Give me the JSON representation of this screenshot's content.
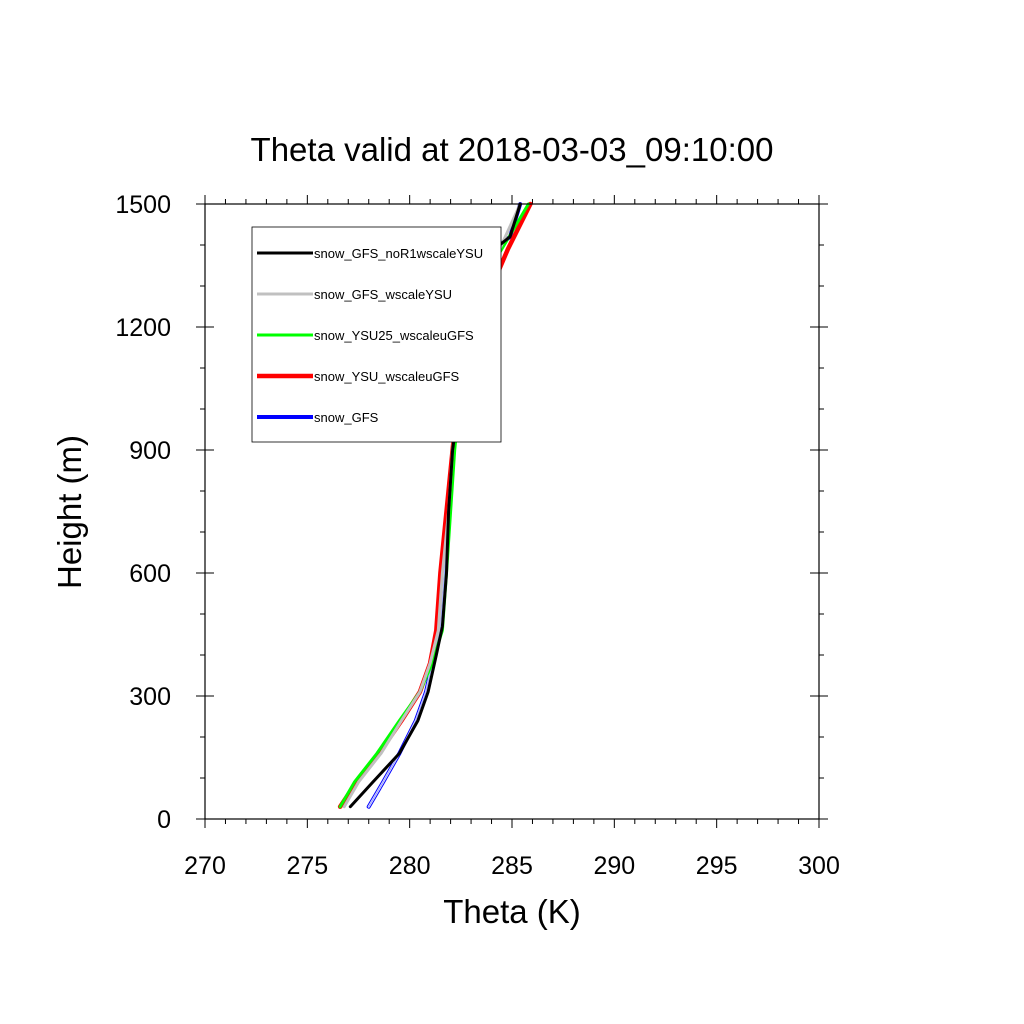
{
  "chart_data": {
    "type": "line",
    "title": "Theta valid at 2018-03-03_09:10:00",
    "xlabel": "Theta (K)",
    "ylabel": "Height (m)",
    "xlim": [
      270,
      300
    ],
    "ylim": [
      0,
      1500
    ],
    "xticks": [
      270,
      275,
      280,
      285,
      290,
      295,
      300
    ],
    "yticks": [
      0,
      300,
      600,
      900,
      1200,
      1500
    ],
    "grid": false,
    "legend_position": "top-left",
    "series": [
      {
        "name": "snow_GFS",
        "color": "#0000ff",
        "style": "thin-blue-outline",
        "points": [
          [
            278.0,
            30
          ],
          [
            278.7,
            90
          ],
          [
            279.5,
            160
          ],
          [
            280.3,
            240
          ],
          [
            280.8,
            310
          ],
          [
            281.2,
            400
          ],
          [
            281.5,
            470
          ],
          [
            281.7,
            600
          ],
          [
            281.9,
            750
          ],
          [
            282.1,
            900
          ],
          [
            282.5,
            1050
          ],
          [
            282.9,
            1150
          ],
          [
            283.3,
            1300
          ],
          [
            284.4,
            1400
          ],
          [
            284.9,
            1420
          ],
          [
            285.4,
            1500
          ]
        ]
      },
      {
        "name": "snow_YSU_wscaleuGFS",
        "color": "#ff0000",
        "style": "thick",
        "points": [
          [
            276.6,
            30
          ],
          [
            277.4,
            90
          ],
          [
            278.5,
            160
          ],
          [
            279.6,
            240
          ],
          [
            280.5,
            310
          ],
          [
            281.0,
            380
          ],
          [
            281.3,
            460
          ],
          [
            281.5,
            600
          ],
          [
            281.8,
            750
          ],
          [
            282.1,
            900
          ],
          [
            282.4,
            1050
          ],
          [
            282.9,
            1150
          ],
          [
            283.6,
            1250
          ],
          [
            284.8,
            1390
          ],
          [
            285.9,
            1500
          ]
        ]
      },
      {
        "name": "snow_YSU25_wscaleuGFS",
        "color": "#00ff00",
        "style": "medium",
        "points": [
          [
            276.6,
            30
          ],
          [
            277.3,
            90
          ],
          [
            278.4,
            160
          ],
          [
            279.5,
            240
          ],
          [
            280.5,
            310
          ],
          [
            281.1,
            380
          ],
          [
            281.6,
            460
          ],
          [
            281.8,
            600
          ],
          [
            282.0,
            750
          ],
          [
            282.2,
            900
          ],
          [
            282.5,
            1050
          ],
          [
            283.0,
            1200
          ],
          [
            283.4,
            1300
          ],
          [
            284.5,
            1390
          ],
          [
            285.8,
            1500
          ]
        ]
      },
      {
        "name": "snow_GFS_wscaleYSU",
        "color": "#c0c0c0",
        "style": "medium",
        "points": [
          [
            276.8,
            30
          ],
          [
            277.5,
            90
          ],
          [
            278.6,
            160
          ],
          [
            279.6,
            240
          ],
          [
            280.5,
            310
          ],
          [
            281.0,
            380
          ],
          [
            281.4,
            460
          ],
          [
            281.6,
            600
          ],
          [
            281.9,
            750
          ],
          [
            282.1,
            900
          ],
          [
            282.4,
            1050
          ],
          [
            282.9,
            1200
          ],
          [
            283.3,
            1300
          ],
          [
            284.4,
            1390
          ],
          [
            285.4,
            1500
          ]
        ]
      },
      {
        "name": "snow_GFS_noR1wscaleYSU",
        "color": "#000000",
        "style": "medium",
        "points": [
          [
            277.1,
            30
          ],
          [
            278.2,
            90
          ],
          [
            279.5,
            160
          ],
          [
            280.4,
            240
          ],
          [
            280.9,
            310
          ],
          [
            281.3,
            400
          ],
          [
            281.6,
            470
          ],
          [
            281.8,
            600
          ],
          [
            281.9,
            750
          ],
          [
            282.1,
            900
          ],
          [
            282.5,
            1050
          ],
          [
            282.9,
            1150
          ],
          [
            283.3,
            1300
          ],
          [
            284.4,
            1400
          ],
          [
            284.9,
            1420
          ],
          [
            285.4,
            1500
          ]
        ]
      }
    ],
    "legend_order": [
      "snow_GFS_noR1wscaleYSU",
      "snow_GFS_wscaleYSU",
      "snow_YSU25_wscaleuGFS",
      "snow_YSU_wscaleuGFS",
      "snow_GFS"
    ]
  }
}
